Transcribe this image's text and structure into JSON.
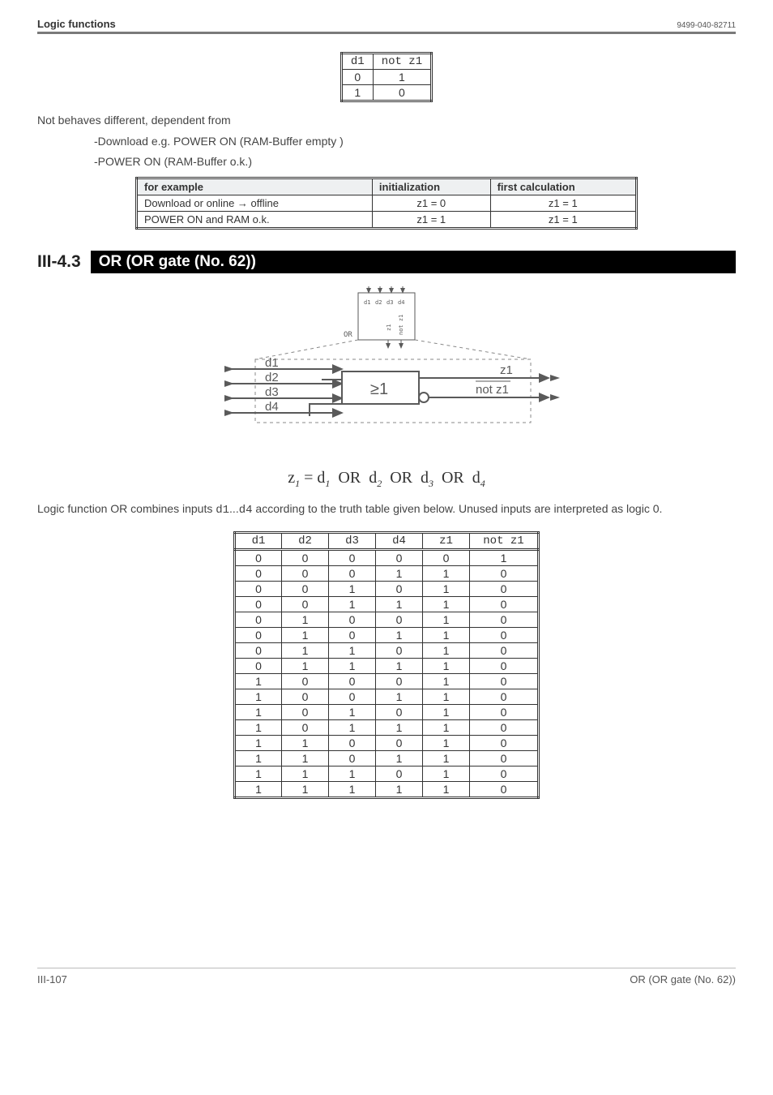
{
  "header": {
    "left": "Logic functions",
    "right": "9499-040-82711"
  },
  "notTable": {
    "headers": [
      "d1",
      "not z1"
    ],
    "rows": [
      [
        "0",
        "1"
      ],
      [
        "1",
        "0"
      ]
    ]
  },
  "behavesPara": "Not behaves different, dependent from",
  "behavesList": [
    "-Download e.g. POWER ON (RAM-Buffer empty )",
    "-POWER ON (RAM-Buffer o.k.)"
  ],
  "initTable": {
    "headers": [
      "for example",
      "initialization",
      "first calculation"
    ],
    "rows": [
      [
        "Download or online → offline",
        "z1 = 0",
        "z1 = 1"
      ],
      [
        "POWER ON and RAM o.k.",
        "z1 = 1",
        "z1 = 1"
      ]
    ]
  },
  "section": {
    "num": "III-4.3",
    "title": "OR (OR gate (No. 62))"
  },
  "figure": {
    "block_label": "OR",
    "gate_symbol": "≥1",
    "inputs": [
      "d1",
      "d2",
      "d3",
      "d4"
    ],
    "outputs": [
      "z1",
      "not z1"
    ],
    "internal_labels": [
      "z1",
      "not z1"
    ],
    "colors": {
      "stroke": "#5a5a5a",
      "text": "#5a5a5a",
      "bg": "#ffffff"
    }
  },
  "equation": {
    "lhs": "z",
    "lhs_sub": "1",
    "rhs_terms": [
      "d",
      "d",
      "d",
      "d"
    ],
    "rhs_subs": [
      "1",
      "2",
      "3",
      "4"
    ],
    "op": "OR",
    "eq": "="
  },
  "bodyPara": {
    "pre": "Logic function OR combines inputs ",
    "mid1": "d1",
    "mid2": "...",
    "mid3": "d4",
    "post": " according to the truth table given below. Unused inputs are interpreted as logic 0."
  },
  "truthTable": {
    "headers": [
      "d1",
      "d2",
      "d3",
      "d4",
      "z1",
      "not z1"
    ],
    "rows": [
      [
        "0",
        "0",
        "0",
        "0",
        "0",
        "1"
      ],
      [
        "0",
        "0",
        "0",
        "1",
        "1",
        "0"
      ],
      [
        "0",
        "0",
        "1",
        "0",
        "1",
        "0"
      ],
      [
        "0",
        "0",
        "1",
        "1",
        "1",
        "0"
      ],
      [
        "0",
        "1",
        "0",
        "0",
        "1",
        "0"
      ],
      [
        "0",
        "1",
        "0",
        "1",
        "1",
        "0"
      ],
      [
        "0",
        "1",
        "1",
        "0",
        "1",
        "0"
      ],
      [
        "0",
        "1",
        "1",
        "1",
        "1",
        "0"
      ],
      [
        "1",
        "0",
        "0",
        "0",
        "1",
        "0"
      ],
      [
        "1",
        "0",
        "0",
        "1",
        "1",
        "0"
      ],
      [
        "1",
        "0",
        "1",
        "0",
        "1",
        "0"
      ],
      [
        "1",
        "0",
        "1",
        "1",
        "1",
        "0"
      ],
      [
        "1",
        "1",
        "0",
        "0",
        "1",
        "0"
      ],
      [
        "1",
        "1",
        "0",
        "1",
        "1",
        "0"
      ],
      [
        "1",
        "1",
        "1",
        "0",
        "1",
        "0"
      ],
      [
        "1",
        "1",
        "1",
        "1",
        "1",
        "0"
      ]
    ]
  },
  "footer": {
    "left": "III-107",
    "right": "OR (OR gate (No. 62))"
  }
}
